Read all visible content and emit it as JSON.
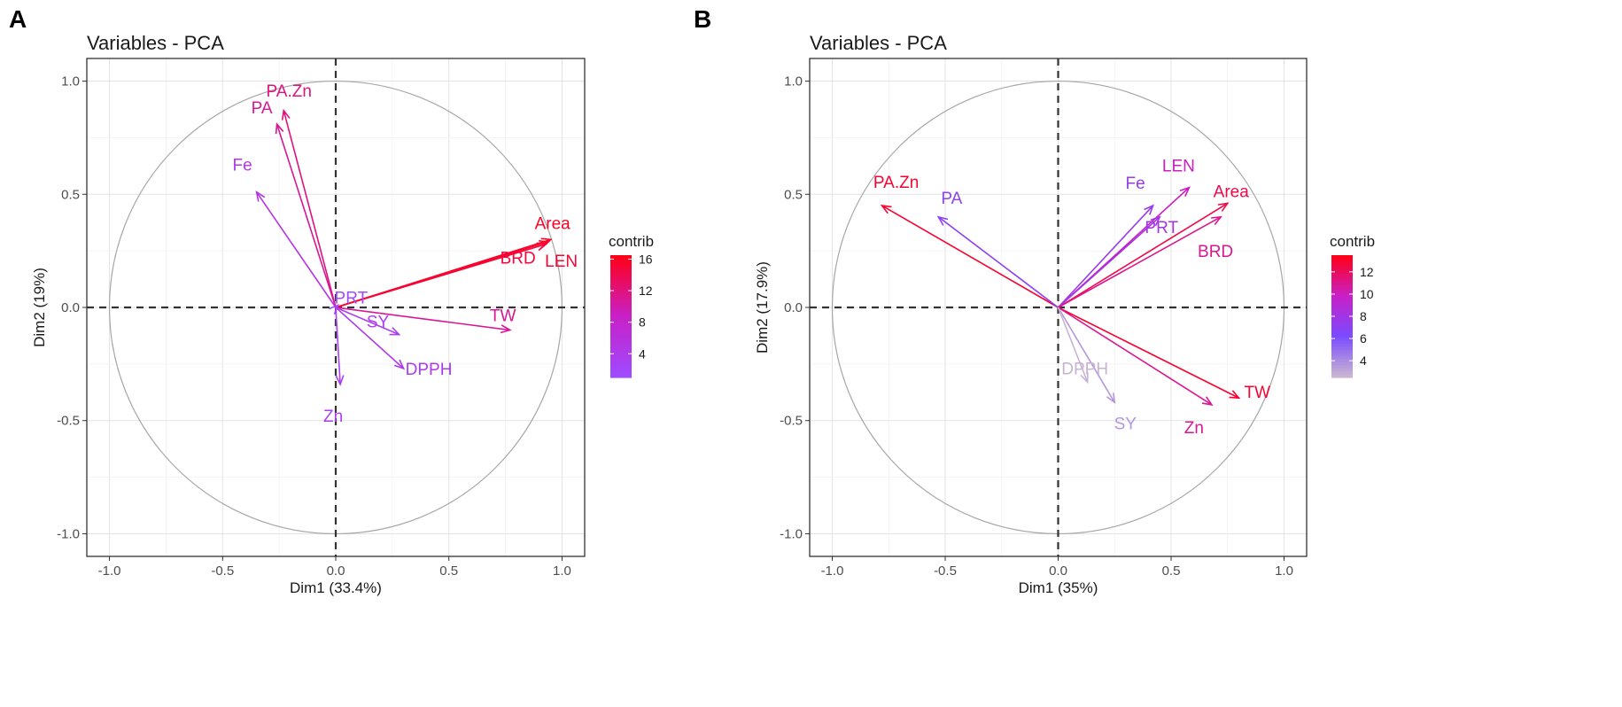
{
  "panels": {
    "A": {
      "tag": "A",
      "title": "Variables - PCA"
    },
    "B": {
      "tag": "B",
      "title": "Variables - PCA"
    }
  },
  "chart_data": [
    {
      "type": "scatter",
      "title": "Variables - PCA",
      "xlabel": "Dim1 (33.4%)",
      "ylabel": "Dim2 (19%)",
      "xlim": [
        -1.1,
        1.1
      ],
      "ylim": [
        -1.1,
        1.1
      ],
      "x_ticks": [
        -1.0,
        -0.5,
        0.0,
        0.5,
        1.0
      ],
      "y_ticks": [
        -1.0,
        -0.5,
        0.0,
        0.5,
        1.0
      ],
      "legend": {
        "title": "contrib",
        "ticks": [
          4,
          8,
          12,
          16
        ],
        "range": [
          1,
          16.5
        ],
        "colors": [
          "#9f4bff",
          "#c820c8",
          "#ff0019"
        ]
      },
      "variables": [
        {
          "name": "PA.Zn",
          "x": -0.23,
          "y": 0.87,
          "contrib": 12
        },
        {
          "name": "PA",
          "x": -0.26,
          "y": 0.81,
          "contrib": 11
        },
        {
          "name": "Fe",
          "x": -0.35,
          "y": 0.51,
          "contrib": 5
        },
        {
          "name": "Area",
          "x": 0.95,
          "y": 0.3,
          "contrib": 16
        },
        {
          "name": "BRD",
          "x": 0.93,
          "y": 0.28,
          "contrib": 15
        },
        {
          "name": "LEN",
          "x": 0.94,
          "y": 0.29,
          "contrib": 15.5
        },
        {
          "name": "PRT",
          "x": 0.01,
          "y": 0.01,
          "contrib": 1
        },
        {
          "name": "TW",
          "x": 0.77,
          "y": -0.1,
          "contrib": 11
        },
        {
          "name": "SY",
          "x": 0.28,
          "y": -0.12,
          "contrib": 3
        },
        {
          "name": "DPPH",
          "x": 0.3,
          "y": -0.27,
          "contrib": 4
        },
        {
          "name": "Zn",
          "x": 0.02,
          "y": -0.34,
          "contrib": 3
        }
      ]
    },
    {
      "type": "scatter",
      "title": "Variables - PCA",
      "xlabel": "Dim1 (35%)",
      "ylabel": "Dim2 (17.9%)",
      "xlim": [
        -1.1,
        1.1
      ],
      "ylim": [
        -1.1,
        1.1
      ],
      "x_ticks": [
        -1.0,
        -0.5,
        0.0,
        0.5,
        1.0
      ],
      "y_ticks": [
        -1.0,
        -0.5,
        0.0,
        0.5,
        1.0
      ],
      "legend": {
        "title": "contrib",
        "ticks": [
          4,
          6,
          8,
          10,
          12
        ],
        "range": [
          2.5,
          13.5
        ],
        "colors": [
          "#c8b4d2",
          "#7b4bff",
          "#c820c8",
          "#ff0019"
        ]
      },
      "variables": [
        {
          "name": "PA.Zn",
          "x": -0.78,
          "y": 0.45,
          "contrib": 13
        },
        {
          "name": "PA",
          "x": -0.53,
          "y": 0.4,
          "contrib": 7
        },
        {
          "name": "Fe",
          "x": 0.42,
          "y": 0.45,
          "contrib": 7.5
        },
        {
          "name": "LEN",
          "x": 0.58,
          "y": 0.53,
          "contrib": 10
        },
        {
          "name": "Area",
          "x": 0.75,
          "y": 0.46,
          "contrib": 12.5
        },
        {
          "name": "PRT",
          "x": 0.45,
          "y": 0.4,
          "contrib": 8
        },
        {
          "name": "BRD",
          "x": 0.72,
          "y": 0.4,
          "contrib": 11
        },
        {
          "name": "TW",
          "x": 0.8,
          "y": -0.4,
          "contrib": 13
        },
        {
          "name": "Zn",
          "x": 0.68,
          "y": -0.43,
          "contrib": 11
        },
        {
          "name": "SY",
          "x": 0.25,
          "y": -0.42,
          "contrib": 3.5
        },
        {
          "name": "DPPH",
          "x": 0.13,
          "y": -0.33,
          "contrib": 2.5
        }
      ]
    }
  ]
}
